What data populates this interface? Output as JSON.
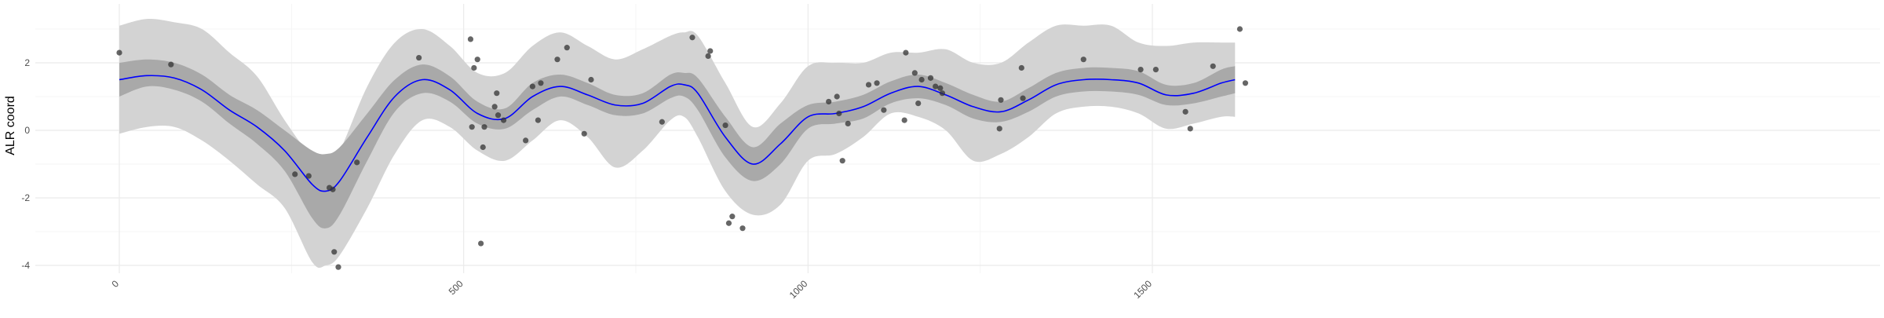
{
  "chart_data": {
    "type": "line",
    "title": "",
    "xlabel": "",
    "ylabel": "ALR coord",
    "xlim": [
      -100,
      1700
    ],
    "ylim": [
      -4.3,
      3.7
    ],
    "x_ticks": [
      0,
      500,
      1000,
      1500
    ],
    "x_tick_labels": [
      "0",
      "500",
      "1000",
      "1500"
    ],
    "y_ticks": [
      -4,
      -2,
      0,
      2
    ],
    "y_tick_labels": [
      "-4",
      "-2",
      "0",
      "2"
    ],
    "grid": true,
    "legend": "none",
    "colors": {
      "line": "#0000ff",
      "inner_band": "#a9a9a9",
      "outer_band": "#d3d3d3",
      "points": "#333333",
      "grid_major": "#ebebeb",
      "grid_minor": "#f5f5f5"
    },
    "series": [
      {
        "kind": "fit_line",
        "x": [
          0,
          40,
          80,
          120,
          160,
          200,
          240,
          280,
          300,
          320,
          360,
          400,
          440,
          480,
          520,
          560,
          600,
          640,
          680,
          720,
          760,
          800,
          820,
          840,
          880,
          920,
          960,
          1000,
          1040,
          1080,
          1120,
          1160,
          1200,
          1240,
          1280,
          1320,
          1360,
          1400,
          1440,
          1480,
          1520,
          1560,
          1600,
          1620
        ],
        "y": [
          1.5,
          1.62,
          1.55,
          1.2,
          0.6,
          0.1,
          -0.6,
          -1.6,
          -1.8,
          -1.5,
          -0.2,
          1.0,
          1.5,
          1.2,
          0.5,
          0.35,
          1.0,
          1.3,
          1.05,
          0.75,
          0.8,
          1.3,
          1.35,
          1.1,
          -0.2,
          -1.0,
          -0.4,
          0.4,
          0.5,
          0.7,
          1.1,
          1.3,
          1.05,
          0.7,
          0.55,
          0.9,
          1.35,
          1.5,
          1.5,
          1.4,
          1.05,
          1.1,
          1.4,
          1.5
        ]
      },
      {
        "kind": "inner_band",
        "x": [
          0,
          40,
          80,
          120,
          160,
          200,
          240,
          280,
          300,
          320,
          360,
          400,
          440,
          480,
          520,
          560,
          600,
          640,
          680,
          720,
          760,
          800,
          820,
          840,
          880,
          920,
          960,
          1000,
          1040,
          1080,
          1120,
          1160,
          1200,
          1240,
          1280,
          1320,
          1360,
          1400,
          1440,
          1480,
          1520,
          1560,
          1600,
          1620
        ],
        "lower": [
          1.0,
          1.3,
          1.2,
          0.85,
          0.2,
          -0.4,
          -1.2,
          -2.6,
          -2.9,
          -2.5,
          -0.9,
          0.55,
          1.1,
          0.85,
          0.2,
          0.05,
          0.6,
          1.0,
          0.75,
          0.45,
          0.5,
          0.95,
          1.0,
          0.6,
          -0.8,
          -1.5,
          -1.0,
          0.05,
          0.2,
          0.35,
          0.8,
          0.95,
          0.75,
          0.35,
          0.25,
          0.55,
          1.0,
          1.15,
          1.15,
          1.05,
          0.75,
          0.8,
          1.0,
          1.1
        ],
        "upper": [
          2.0,
          2.1,
          2.0,
          1.65,
          1.05,
          0.6,
          0.0,
          -0.6,
          -0.7,
          -0.5,
          0.5,
          1.5,
          1.95,
          1.6,
          0.85,
          0.65,
          1.4,
          1.65,
          1.4,
          1.05,
          1.1,
          1.65,
          1.7,
          1.55,
          0.4,
          -0.5,
          0.2,
          0.75,
          0.85,
          1.05,
          1.45,
          1.65,
          1.4,
          1.05,
          0.85,
          1.25,
          1.7,
          1.85,
          1.85,
          1.75,
          1.35,
          1.4,
          1.8,
          1.9
        ]
      },
      {
        "kind": "outer_band",
        "x": [
          0,
          40,
          80,
          120,
          160,
          200,
          240,
          280,
          300,
          320,
          360,
          400,
          440,
          480,
          520,
          560,
          600,
          640,
          680,
          720,
          760,
          800,
          820,
          840,
          880,
          920,
          960,
          1000,
          1040,
          1080,
          1120,
          1160,
          1200,
          1240,
          1280,
          1320,
          1360,
          1400,
          1440,
          1480,
          1520,
          1560,
          1600,
          1620
        ],
        "lower": [
          -0.1,
          0.1,
          0.1,
          -0.3,
          -0.9,
          -1.6,
          -2.3,
          -3.9,
          -4.0,
          -3.7,
          -2.3,
          -0.7,
          0.3,
          0.1,
          -0.6,
          -0.9,
          -0.3,
          0.3,
          -0.2,
          -1.1,
          -0.6,
          0.3,
          0.4,
          -0.2,
          -1.8,
          -2.5,
          -2.2,
          -0.9,
          -0.7,
          -0.2,
          0.5,
          0.4,
          0.0,
          -0.9,
          -0.7,
          -0.2,
          0.5,
          0.7,
          0.7,
          0.5,
          0.05,
          0.2,
          0.4,
          0.4
        ],
        "upper": [
          3.1,
          3.3,
          3.2,
          3.0,
          2.3,
          1.6,
          0.3,
          -0.8,
          -0.9,
          -0.6,
          1.3,
          2.6,
          3.0,
          2.5,
          1.7,
          1.7,
          2.5,
          2.9,
          2.5,
          2.1,
          2.4,
          2.8,
          2.9,
          2.8,
          1.4,
          0.1,
          0.8,
          1.9,
          2.0,
          2.0,
          2.3,
          2.3,
          2.4,
          2.0,
          2.0,
          2.6,
          3.1,
          3.1,
          3.1,
          2.6,
          2.5,
          2.6,
          2.6,
          2.6
        ]
      },
      {
        "kind": "points",
        "x": [
          0,
          75,
          255,
          275,
          305,
          310,
          312,
          318,
          345,
          435,
          510,
          512,
          515,
          520,
          525,
          528,
          530,
          545,
          548,
          550,
          558,
          590,
          600,
          608,
          612,
          636,
          650,
          675,
          685,
          788,
          832,
          855,
          858,
          880,
          885,
          890,
          905,
          1030,
          1042,
          1045,
          1050,
          1058,
          1088,
          1100,
          1110,
          1140,
          1142,
          1155,
          1160,
          1165,
          1178,
          1185,
          1192,
          1195,
          1278,
          1280,
          1310,
          1312,
          1400,
          1483,
          1505,
          1548,
          1555,
          1588,
          1627,
          1635
        ],
        "y": [
          2.3,
          1.95,
          -1.3,
          -1.35,
          -1.7,
          -1.75,
          -3.6,
          -4.05,
          -0.95,
          2.15,
          2.7,
          0.1,
          1.85,
          2.1,
          -3.35,
          -0.5,
          0.1,
          0.7,
          1.1,
          0.45,
          0.3,
          -0.3,
          1.3,
          0.3,
          1.4,
          2.1,
          2.45,
          -0.1,
          1.5,
          0.25,
          2.75,
          2.2,
          2.35,
          0.15,
          -2.75,
          -2.55,
          -2.9,
          0.85,
          1.0,
          0.5,
          -0.9,
          0.2,
          1.35,
          1.4,
          0.6,
          0.3,
          2.3,
          1.7,
          0.8,
          1.5,
          1.55,
          1.3,
          1.25,
          1.1,
          0.05,
          0.9,
          1.85,
          0.95,
          2.1,
          1.8,
          1.8,
          0.55,
          0.05,
          1.9,
          3.0,
          1.4
        ]
      }
    ]
  }
}
